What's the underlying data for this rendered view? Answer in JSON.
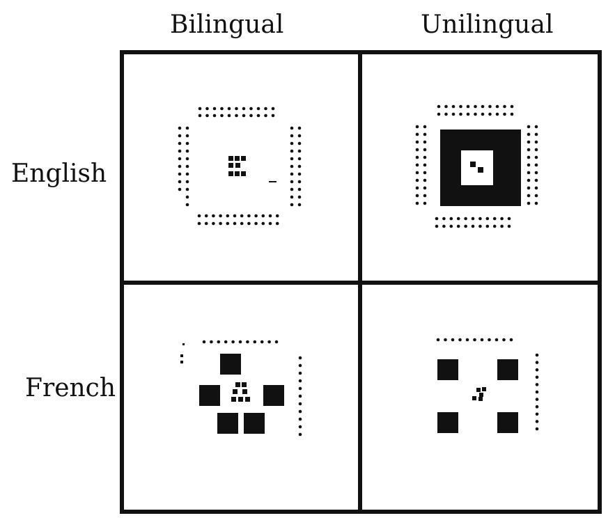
{
  "columns": [
    "Bilingual",
    "Unilingual"
  ],
  "rows": [
    "English",
    "French"
  ],
  "colors": {
    "ink": "#111111",
    "background": "#ffffff"
  }
}
